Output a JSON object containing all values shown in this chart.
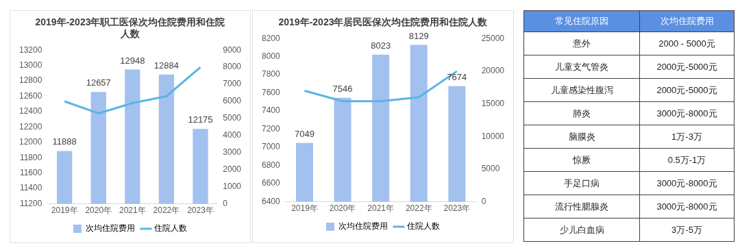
{
  "chart_data": [
    {
      "type": "bar",
      "title": "2019年-2023年职工医保次均住院费用和住院人数",
      "categories": [
        "2019年",
        "2020年",
        "2021年",
        "2022年",
        "2023年"
      ],
      "series": [
        {
          "name": "次均住院费用",
          "type": "bar",
          "color": "#a3c1ef",
          "values": [
            11888,
            12657,
            12948,
            12884,
            12175
          ],
          "value_labels": [
            "11888",
            "12657",
            "12948",
            "12884",
            "12175"
          ]
        },
        {
          "name": "住院人数",
          "type": "line",
          "axis": "y2",
          "color": "#5ab4e5",
          "values": [
            6000,
            5300,
            5900,
            6300,
            8000
          ]
        }
      ],
      "ylim": [
        11200,
        13200
      ],
      "yticks": [
        11200,
        11400,
        11600,
        11800,
        12000,
        12200,
        12400,
        12600,
        12800,
        13000,
        13200
      ],
      "y2lim": [
        0,
        9000
      ],
      "y2ticks": [
        0,
        1000,
        2000,
        3000,
        4000,
        5000,
        6000,
        7000,
        8000,
        9000
      ],
      "grid": false,
      "legend": "bottom",
      "marker": "none"
    },
    {
      "type": "bar",
      "title": "2019年-2023年居民医保次均住院费用和住院人数",
      "categories": [
        "2019年",
        "2020年",
        "2021年",
        "2022年",
        "2023年"
      ],
      "series": [
        {
          "name": "次均住院费用",
          "type": "bar",
          "color": "#a3c1ef",
          "values": [
            7049,
            7546,
            8023,
            8129,
            7674
          ],
          "value_labels": [
            "7049",
            "7546",
            "8023",
            "8129",
            "7674"
          ]
        },
        {
          "name": "住院人数",
          "type": "line",
          "axis": "y2",
          "color": "#5ab4e5",
          "values": [
            17000,
            15400,
            15400,
            16000,
            20000
          ]
        }
      ],
      "ylim": [
        6400,
        8200
      ],
      "yticks": [
        6400,
        6600,
        6800,
        7000,
        7200,
        7400,
        7600,
        7800,
        8000,
        8200
      ],
      "y2lim": [
        0,
        25000
      ],
      "y2ticks": [
        0,
        5000,
        10000,
        15000,
        20000,
        25000
      ],
      "grid": false,
      "legend": "bottom",
      "marker": "none"
    },
    {
      "type": "other",
      "annotations": [
        "常见住院原因",
        "次均住院费用",
        "意外",
        "2000 - 5000元",
        "儿童支气管炎",
        "2000元-5000元",
        "儿童感染性腹泻",
        "2000元-5000元",
        "肺炎",
        "3000元-8000元",
        "脑膜炎",
        "1万-3万",
        "惊厥",
        "0.5万-1万",
        "手足口病",
        "3000元-8000元",
        "流行性腮腺炎",
        "3000元-8000元",
        "少儿白血病",
        "3万-5万"
      ]
    }
  ]
}
